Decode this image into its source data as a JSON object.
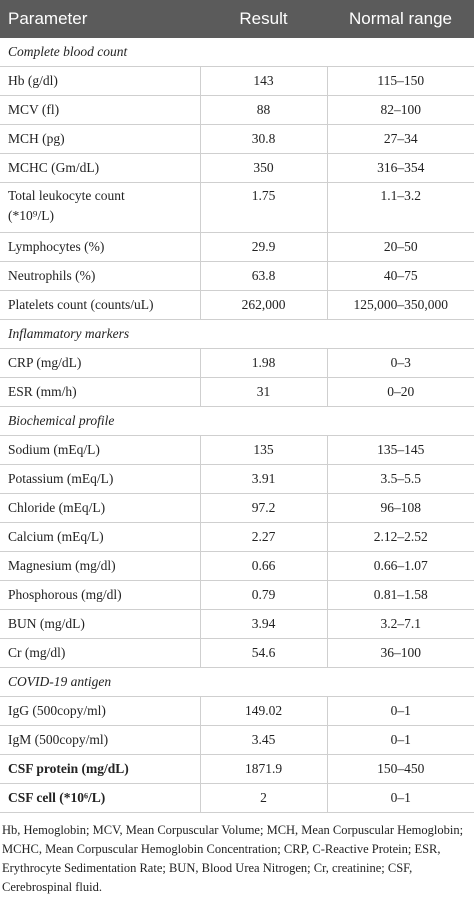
{
  "header": {
    "columns": [
      "Parameter",
      "Result",
      "Normal range"
    ]
  },
  "sections": [
    {
      "title": "Complete blood count",
      "rows": [
        [
          "Hb (g/dl)",
          "143",
          "115–150"
        ],
        [
          "MCV (fl)",
          "88",
          "82–100"
        ],
        [
          "MCH (pg)",
          "30.8",
          "27–34"
        ],
        [
          "MCHC (Gm/dL)",
          "350",
          "316–354"
        ],
        [
          "Total leukocyte count (*10⁹/L)",
          "1.75",
          "1.1–3.2"
        ],
        [
          "Lymphocytes (%)",
          "29.9",
          "20–50"
        ],
        [
          "Neutrophils (%)",
          "63.8",
          "40–75"
        ],
        [
          "Platelets count (counts/uL)",
          "262,000",
          "125,000–350,000"
        ]
      ]
    },
    {
      "title": "Inflammatory markers",
      "rows": [
        [
          "CRP (mg/dL)",
          "1.98",
          "0–3"
        ],
        [
          "ESR (mm/h)",
          "31",
          "0–20"
        ]
      ]
    },
    {
      "title": "Biochemical profile",
      "rows": [
        [
          "Sodium (mEq/L)",
          "135",
          "135–145"
        ],
        [
          "Potassium (mEq/L)",
          "3.91",
          "3.5–5.5"
        ],
        [
          "Chloride (mEq/L)",
          "97.2",
          "96–108"
        ],
        [
          "Calcium (mEq/L)",
          "2.27",
          "2.12–2.52"
        ],
        [
          "Magnesium (mg/dl)",
          "0.66",
          "0.66–1.07"
        ],
        [
          "Phosphorous (mg/dl)",
          "0.79",
          "0.81–1.58"
        ],
        [
          "BUN (mg/dL)",
          "3.94",
          "3.2–7.1"
        ],
        [
          "Cr (mg/dl)",
          "54.6",
          "36–100"
        ]
      ]
    },
    {
      "title": "COVID-19 antigen",
      "rows": [
        [
          "IgG (500copy/ml)",
          "149.02",
          "0–1"
        ],
        [
          "IgM (500copy/ml)",
          "3.45",
          "0–1"
        ],
        [
          "CSF protein (mg/dL)",
          "1871.9",
          "150–450"
        ],
        [
          "CSF cell (*10⁶/L)",
          "2",
          "0–1"
        ]
      ]
    }
  ],
  "footnote": "Hb, Hemoglobin; MCV, Mean Corpuscular Volume; MCH, Mean Corpuscular Hemoglobin; MCHC, Mean Corpuscular Hemoglobin Concentration; CRP, C-Reactive Protein; ESR, Erythrocyte Sedimentation Rate; BUN, Blood Urea Nitrogen; Cr, creatinine; CSF, Cerebrospinal fluid."
}
